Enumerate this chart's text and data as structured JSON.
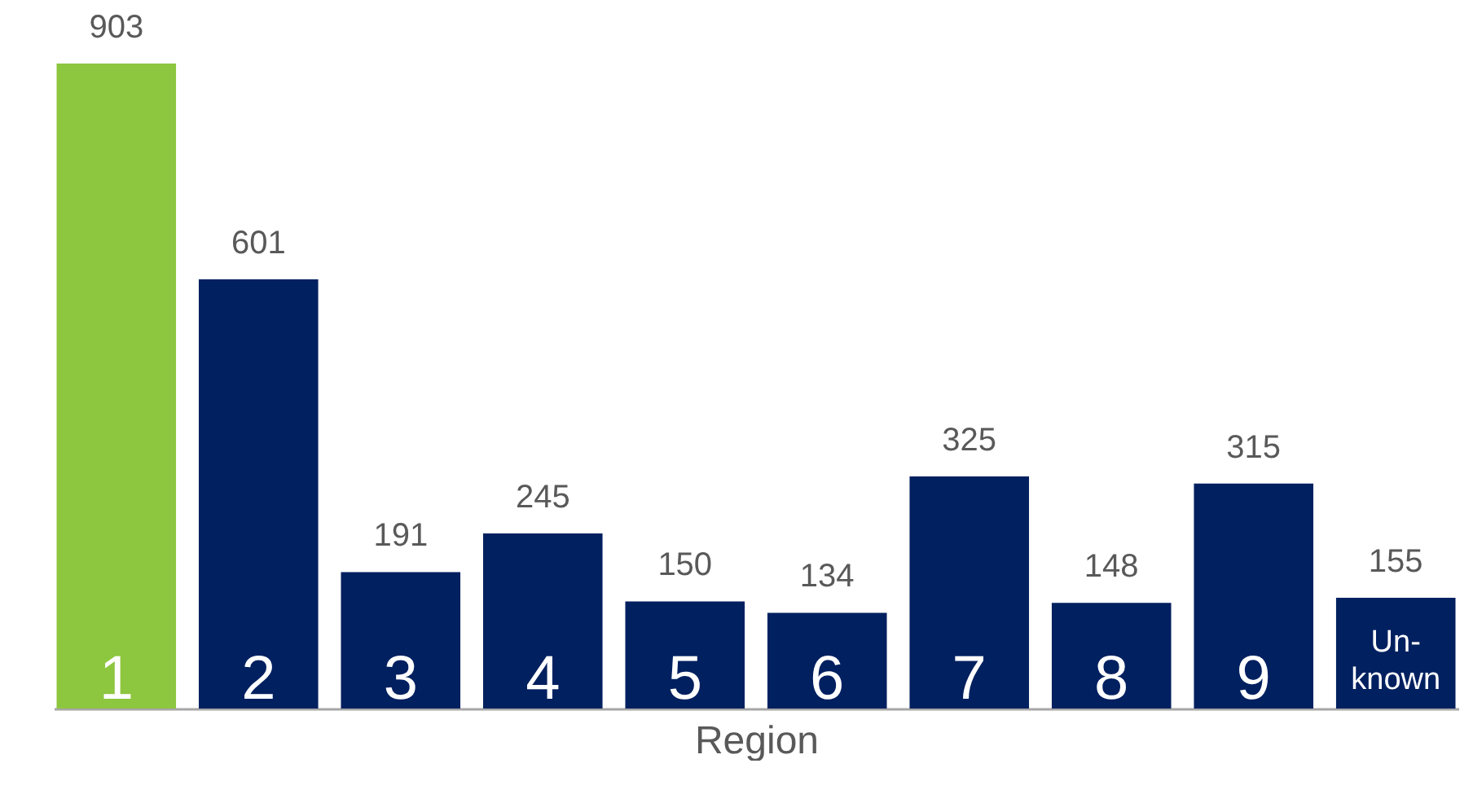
{
  "chart_data": {
    "type": "bar",
    "xlabel": "Region",
    "categories": [
      "1",
      "2",
      "3",
      "4",
      "5",
      "6",
      "7",
      "8",
      "9",
      "Un-known"
    ],
    "values": [
      903,
      601,
      191,
      245,
      150,
      134,
      325,
      148,
      315,
      155
    ],
    "colors": [
      "#8dc63f",
      "#002060",
      "#002060",
      "#002060",
      "#002060",
      "#002060",
      "#002060",
      "#002060",
      "#002060",
      "#002060"
    ],
    "data_labels": true
  }
}
